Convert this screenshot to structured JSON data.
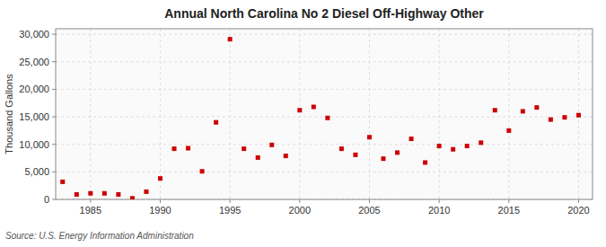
{
  "chart_data": {
    "type": "scatter",
    "title": "Annual North Carolina No 2 Diesel Off-Highway Other",
    "ylabel": "Thousand Gallons",
    "source": "Source: U.S. Energy Information Administration",
    "color": "#cc0000",
    "marker": "square",
    "grid": true,
    "x": [
      1983,
      1984,
      1985,
      1986,
      1987,
      1988,
      1989,
      1990,
      1991,
      1992,
      1993,
      1994,
      1995,
      1996,
      1997,
      1998,
      1999,
      2000,
      2001,
      2002,
      2003,
      2004,
      2005,
      2006,
      2007,
      2008,
      2009,
      2010,
      2011,
      2012,
      2013,
      2014,
      2015,
      2016,
      2017,
      2018,
      2019,
      2020
    ],
    "values": [
      3200,
      900,
      1100,
      1100,
      900,
      200,
      1400,
      3800,
      9200,
      9300,
      5100,
      14000,
      29100,
      9200,
      7600,
      9900,
      7900,
      16200,
      16800,
      14800,
      9200,
      8100,
      11300,
      7400,
      8500,
      11000,
      6700,
      9700,
      9100,
      9700,
      10300,
      16200,
      12500,
      16000,
      16700,
      14500,
      14900,
      15300
    ],
    "xlim": [
      1982.5,
      2021
    ],
    "ylim": [
      0,
      31000
    ],
    "xticks": [
      1985,
      1990,
      1995,
      2000,
      2005,
      2010,
      2015,
      2020
    ],
    "yticks": [
      0,
      {
        "value": 5000,
        "label": "5,000"
      },
      {
        "value": 10000,
        "label": "10,000"
      },
      {
        "value": 15000,
        "label": "15,000"
      },
      {
        "value": 20000,
        "label": "20,000"
      },
      {
        "value": 25000,
        "label": "25,000"
      },
      {
        "value": 30000,
        "label": "30,000"
      }
    ]
  }
}
